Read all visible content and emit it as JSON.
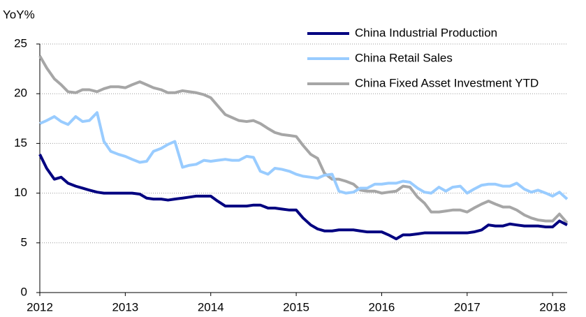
{
  "chart_data": {
    "type": "line",
    "y_label": "YoY%",
    "x": [
      2012.0,
      2012.08,
      2012.17,
      2012.25,
      2012.33,
      2012.42,
      2012.5,
      2012.58,
      2012.67,
      2012.75,
      2012.83,
      2012.92,
      2013.0,
      2013.08,
      2013.17,
      2013.25,
      2013.33,
      2013.42,
      2013.5,
      2013.58,
      2013.67,
      2013.75,
      2013.83,
      2013.92,
      2014.0,
      2014.08,
      2014.17,
      2014.25,
      2014.33,
      2014.42,
      2014.5,
      2014.58,
      2014.67,
      2014.75,
      2014.83,
      2014.92,
      2015.0,
      2015.08,
      2015.17,
      2015.25,
      2015.33,
      2015.42,
      2015.5,
      2015.58,
      2015.67,
      2015.75,
      2015.83,
      2015.92,
      2016.0,
      2016.08,
      2016.17,
      2016.25,
      2016.33,
      2016.42,
      2016.5,
      2016.58,
      2016.67,
      2016.75,
      2016.83,
      2016.92,
      2017.0,
      2017.08,
      2017.17,
      2017.25,
      2017.33,
      2017.42,
      2017.5,
      2017.58,
      2017.67,
      2017.75,
      2017.83,
      2017.92,
      2018.0,
      2018.08,
      2018.17
    ],
    "series": [
      {
        "name": "China Industrial Production",
        "color": "#000080",
        "values": [
          13.9,
          12.5,
          11.4,
          11.6,
          11.0,
          10.7,
          10.5,
          10.3,
          10.1,
          10.0,
          10.0,
          10.0,
          10.0,
          10.0,
          9.9,
          9.5,
          9.4,
          9.4,
          9.3,
          9.4,
          9.5,
          9.6,
          9.7,
          9.7,
          9.7,
          9.2,
          8.7,
          8.7,
          8.7,
          8.7,
          8.8,
          8.8,
          8.5,
          8.5,
          8.4,
          8.3,
          8.3,
          7.5,
          6.8,
          6.4,
          6.2,
          6.2,
          6.3,
          6.3,
          6.3,
          6.2,
          6.1,
          6.1,
          6.1,
          5.8,
          5.4,
          5.8,
          5.8,
          5.9,
          6.0,
          6.0,
          6.0,
          6.0,
          6.0,
          6.0,
          6.0,
          6.1,
          6.3,
          6.8,
          6.7,
          6.7,
          6.9,
          6.8,
          6.7,
          6.7,
          6.7,
          6.6,
          6.6,
          7.2,
          6.8
        ]
      },
      {
        "name": "China Retail Sales",
        "color": "#99ccff",
        "values": [
          17.0,
          17.3,
          17.7,
          17.2,
          16.9,
          17.7,
          17.2,
          17.3,
          18.1,
          15.2,
          14.2,
          13.9,
          13.7,
          13.4,
          13.1,
          13.2,
          14.2,
          14.5,
          14.9,
          15.2,
          12.6,
          12.8,
          12.9,
          13.3,
          13.2,
          13.3,
          13.4,
          13.3,
          13.3,
          13.7,
          13.6,
          12.2,
          11.9,
          12.5,
          12.4,
          12.2,
          11.9,
          11.7,
          11.6,
          11.5,
          11.8,
          11.9,
          10.2,
          10.0,
          10.1,
          10.5,
          10.5,
          10.9,
          10.9,
          11.0,
          11.0,
          11.2,
          11.1,
          10.5,
          10.1,
          10.0,
          10.6,
          10.2,
          10.6,
          10.7,
          10.0,
          10.4,
          10.8,
          10.9,
          10.9,
          10.7,
          10.7,
          11.0,
          10.4,
          10.1,
          10.3,
          10.0,
          9.7,
          10.1,
          9.4
        ]
      },
      {
        "name": "China Fixed Asset Investment YTD",
        "color": "#a6a6a6",
        "values": [
          23.8,
          22.6,
          21.5,
          20.9,
          20.2,
          20.1,
          20.4,
          20.4,
          20.2,
          20.5,
          20.7,
          20.7,
          20.6,
          20.9,
          21.2,
          20.9,
          20.6,
          20.4,
          20.1,
          20.1,
          20.3,
          20.2,
          20.1,
          19.9,
          19.6,
          18.8,
          17.9,
          17.6,
          17.3,
          17.2,
          17.3,
          17.0,
          16.5,
          16.1,
          15.9,
          15.8,
          15.7,
          14.8,
          13.9,
          13.5,
          12.0,
          11.4,
          11.4,
          11.2,
          10.9,
          10.3,
          10.2,
          10.2,
          10.0,
          10.1,
          10.2,
          10.7,
          10.6,
          9.6,
          9.0,
          8.1,
          8.1,
          8.2,
          8.3,
          8.3,
          8.1,
          8.5,
          8.9,
          9.2,
          8.9,
          8.6,
          8.6,
          8.3,
          7.8,
          7.5,
          7.3,
          7.2,
          7.2,
          7.9,
          7.0
        ]
      }
    ],
    "xlim": [
      2012,
      2018.17
    ],
    "xticks": [
      2012,
      2013,
      2014,
      2015,
      2016,
      2017,
      2018
    ],
    "ylim": [
      0,
      25
    ],
    "yticks": [
      0,
      5,
      10,
      15,
      20,
      25
    ],
    "grid": true,
    "legend": "upper right"
  }
}
